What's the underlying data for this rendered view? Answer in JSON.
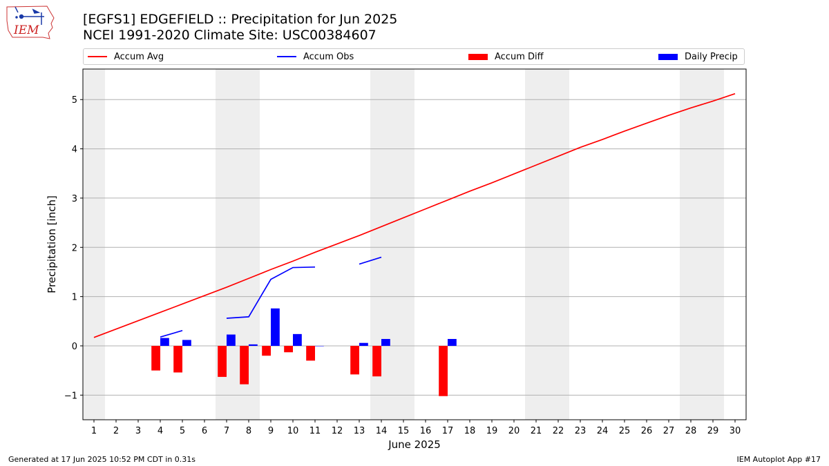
{
  "header": {
    "title_line1": "[EGFS1] EDGEFIELD :: Precipitation for Jun 2025",
    "title_line2": "NCEI 1991-2020 Climate Site: USC00384607"
  },
  "logo": {
    "text": "IEM",
    "icon": "iem-iowa-logo"
  },
  "legend": {
    "items": [
      {
        "label": "Accum Avg",
        "color": "#ff0000",
        "kind": "line"
      },
      {
        "label": "Accum Obs",
        "color": "#0000ff",
        "kind": "line"
      },
      {
        "label": "Accum Diff",
        "color": "#ff0000",
        "kind": "bar"
      },
      {
        "label": "Daily Precip",
        "color": "#0000ff",
        "kind": "bar"
      }
    ]
  },
  "footer": {
    "left": "Generated at 17 Jun 2025 10:52 PM CDT in 0.31s",
    "right": "IEM Autoplot App #17"
  },
  "chart_data": {
    "type": "bar",
    "xlabel": "June 2025",
    "ylabel": "Precipitation [inch]",
    "x": [
      1,
      2,
      3,
      4,
      5,
      6,
      7,
      8,
      9,
      10,
      11,
      12,
      13,
      14,
      15,
      16,
      17,
      18,
      19,
      20,
      21,
      22,
      23,
      24,
      25,
      26,
      27,
      28,
      29,
      30
    ],
    "xlim": [
      0.5,
      30.5
    ],
    "ylim": [
      -1.5,
      5.62
    ],
    "yticks": [
      -1,
      0,
      1,
      2,
      3,
      4,
      5
    ],
    "grid": "horizontal",
    "weekend_shading": [
      [
        0.5,
        1.5
      ],
      [
        6.5,
        8.5
      ],
      [
        13.5,
        15.5
      ],
      [
        20.5,
        22.5
      ],
      [
        27.5,
        29.5
      ]
    ],
    "series": [
      {
        "name": "Accum Avg",
        "kind": "line",
        "color": "#ff0000",
        "values": [
          0.17,
          0.34,
          0.51,
          0.68,
          0.85,
          1.02,
          1.19,
          1.37,
          1.55,
          1.72,
          1.9,
          2.07,
          2.24,
          2.42,
          2.6,
          2.78,
          2.96,
          3.14,
          3.31,
          3.49,
          3.67,
          3.85,
          4.03,
          4.19,
          4.36,
          4.52,
          4.68,
          4.83,
          4.97,
          5.12
        ]
      },
      {
        "name": "Accum Obs",
        "kind": "line",
        "color": "#0000ff",
        "values": [
          null,
          null,
          null,
          0.18,
          0.31,
          null,
          0.56,
          0.59,
          1.35,
          1.59,
          1.6,
          null,
          1.66,
          1.8,
          null,
          null,
          null,
          null,
          null,
          null,
          null,
          null,
          null,
          null,
          null,
          null,
          null,
          null,
          null,
          null
        ]
      },
      {
        "name": "Accum Diff",
        "kind": "bar",
        "color": "#ff0000",
        "values": [
          null,
          null,
          null,
          -0.5,
          -0.54,
          null,
          -0.63,
          -0.78,
          -0.2,
          -0.13,
          -0.3,
          null,
          -0.58,
          -0.62,
          null,
          null,
          -1.02,
          null,
          null,
          null,
          null,
          null,
          null,
          null,
          null,
          null,
          null,
          null,
          null,
          null
        ]
      },
      {
        "name": "Daily Precip",
        "kind": "bar",
        "color": "#0000ff",
        "values": [
          null,
          null,
          null,
          0.16,
          0.12,
          null,
          0.23,
          0.03,
          0.76,
          0.24,
          0.0,
          null,
          0.06,
          0.14,
          null,
          null,
          0.14,
          null,
          null,
          null,
          null,
          null,
          null,
          null,
          null,
          null,
          null,
          null,
          null,
          null
        ]
      }
    ]
  }
}
